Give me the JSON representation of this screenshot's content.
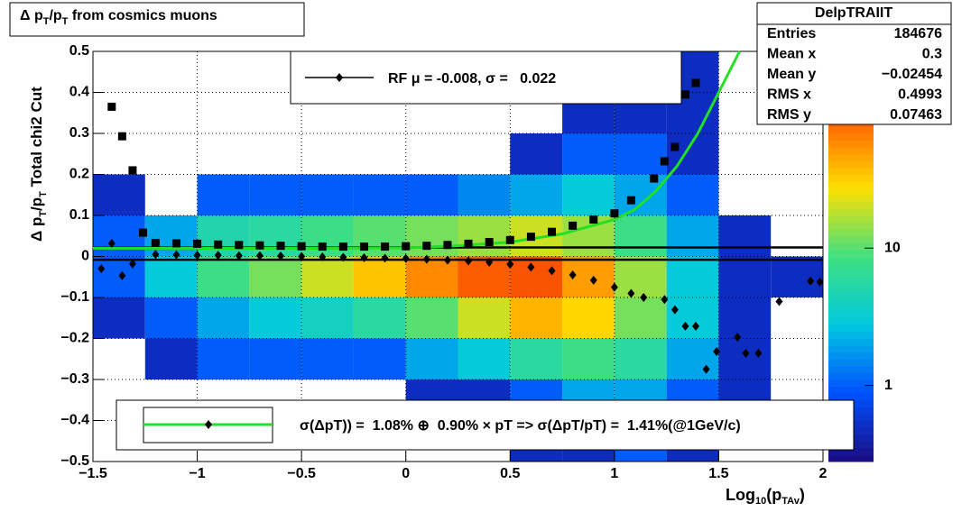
{
  "chart_data": {
    "type": "heatmap",
    "title_parts": [
      "Δ p",
      "T",
      "/p",
      "T",
      " from cosmics muons"
    ],
    "ylabel_parts": [
      "Δ p",
      "T",
      "/p",
      "T",
      "  Total chi2 Cut"
    ],
    "xlabel_parts": [
      "Log",
      "10",
      "(p",
      "TAv",
      ")"
    ],
    "xlim": [
      -1.5,
      2
    ],
    "ylim": [
      -0.5,
      0.5
    ],
    "xticks": [
      {
        "value": -1.5,
        "label": "−1.5"
      },
      {
        "value": -1,
        "label": "−1"
      },
      {
        "value": -0.5,
        "label": "−0.5"
      },
      0,
      0.5,
      1,
      1.5,
      2
    ],
    "yticks": [
      {
        "value": -0.5,
        "label": "−0.5"
      },
      {
        "value": -0.4,
        "label": "−0.4"
      },
      {
        "value": -0.3,
        "label": "−0.3"
      },
      {
        "value": -0.2,
        "label": "−0.2"
      },
      {
        "value": -0.1,
        "label": "−0.1"
      },
      0,
      0.1,
      0.2,
      0.3,
      0.4,
      0.5
    ],
    "grid": true,
    "zlog": true,
    "zlim": [
      0.28,
      270
    ],
    "zticks": [
      1,
      10
    ],
    "palette": [
      "#1a0a80",
      "#0050ff",
      "#00c8e0",
      "#40e080",
      "#ffe000",
      "#ff6000",
      "#c00000"
    ],
    "xbins": [
      -1.5,
      -1.25,
      -1,
      -0.75,
      -0.5,
      -0.25,
      0,
      0.25,
      0.5,
      0.75,
      1,
      1.25,
      1.5,
      1.75,
      2
    ],
    "ybins": [
      -0.5,
      -0.4,
      -0.3,
      -0.2,
      -0.1,
      0,
      0.1,
      0.2,
      0.3,
      0.4,
      0.5
    ],
    "z": [
      [
        0,
        0,
        0,
        0,
        0,
        0,
        0,
        0,
        0.5,
        0.5,
        1,
        0.5,
        0,
        0
      ],
      [
        0,
        0,
        0,
        0,
        0,
        0,
        0.5,
        0.5,
        1,
        2,
        2,
        1,
        0.5,
        0
      ],
      [
        0,
        0.5,
        1,
        1,
        1,
        1,
        2,
        3,
        6,
        8,
        6,
        2,
        0.5,
        0
      ],
      [
        0.5,
        1,
        2,
        3,
        4,
        6,
        10,
        20,
        40,
        30,
        12,
        3,
        0.5,
        0
      ],
      [
        1,
        3,
        8,
        12,
        20,
        35,
        60,
        90,
        100,
        50,
        15,
        3,
        0.5,
        0.5
      ],
      [
        1,
        2,
        5,
        6,
        8,
        10,
        12,
        15,
        20,
        15,
        8,
        2,
        0.5,
        0
      ],
      [
        0.5,
        0,
        1,
        1,
        1,
        1,
        1,
        1.5,
        2,
        3,
        2,
        1,
        0,
        0
      ],
      [
        0,
        0,
        0,
        0,
        0,
        0,
        0,
        0,
        0.5,
        1,
        1,
        0.5,
        0,
        0
      ],
      [
        0,
        0,
        0,
        0,
        0,
        0,
        0,
        0,
        0,
        0.5,
        0.5,
        0.5,
        0,
        0
      ],
      [
        0,
        0,
        0,
        0,
        0,
        0,
        0,
        0,
        0,
        0,
        0.5,
        0.5,
        0,
        0
      ]
    ],
    "series": [
      {
        "marker": "square",
        "color": "#000000",
        "x": [
          -1.41,
          -1.36,
          -1.31,
          -1.26,
          -1.2,
          -1.1,
          -1.0,
          -0.9,
          -0.8,
          -0.7,
          -0.6,
          -0.5,
          -0.4,
          -0.3,
          -0.2,
          -0.1,
          0,
          0.1,
          0.2,
          0.3,
          0.4,
          0.5,
          0.6,
          0.7,
          0.8,
          0.9,
          1.0,
          1.08,
          1.19,
          1.24,
          1.29,
          1.34,
          1.39
        ],
        "values": [
          0.365,
          0.293,
          0.21,
          0.058,
          0.033,
          0.032,
          0.031,
          0.029,
          0.028,
          0.027,
          0.026,
          0.025,
          0.024,
          0.024,
          0.024,
          0.024,
          0.025,
          0.026,
          0.028,
          0.031,
          0.035,
          0.04,
          0.048,
          0.06,
          0.075,
          0.09,
          0.105,
          0.137,
          0.19,
          0.232,
          0.267,
          0.395,
          0.423
        ]
      },
      {
        "marker": "diamond",
        "color": "#000000",
        "x": [
          -1.46,
          -1.41,
          -1.36,
          -1.31,
          -1.2,
          -1.1,
          -1.0,
          -0.9,
          -0.8,
          -0.7,
          -0.6,
          -0.5,
          -0.4,
          -0.3,
          -0.2,
          -0.1,
          0,
          0.1,
          0.2,
          0.3,
          0.4,
          0.5,
          0.6,
          0.7,
          0.8,
          0.9,
          1.0,
          1.08,
          1.14,
          1.24,
          1.29,
          1.34,
          1.39,
          1.44,
          1.49,
          1.59,
          1.63,
          1.69,
          1.79,
          1.94,
          1.985
        ],
        "values": [
          -0.03,
          0.032,
          -0.047,
          -0.018,
          0.005,
          0.004,
          0.003,
          0.003,
          0.002,
          0.002,
          0.001,
          0,
          -0.001,
          -0.002,
          -0.003,
          -0.004,
          -0.005,
          -0.007,
          -0.009,
          -0.011,
          -0.014,
          -0.019,
          -0.026,
          -0.035,
          -0.045,
          -0.058,
          -0.075,
          -0.09,
          -0.1,
          -0.105,
          -0.13,
          -0.17,
          -0.17,
          -0.275,
          -0.232,
          -0.197,
          -0.236,
          -0.236,
          -0.11,
          -0.06,
          -0.062
        ]
      }
    ],
    "fit": {
      "color": "#22e022",
      "x": [
        -1.5,
        -1,
        -0.5,
        0,
        0.25,
        0.5,
        0.75,
        1,
        1.1,
        1.2,
        1.3,
        1.4,
        1.5,
        1.6
      ],
      "values": [
        0.02,
        0.02,
        0.02,
        0.021,
        0.026,
        0.035,
        0.055,
        0.09,
        0.115,
        0.16,
        0.22,
        0.3,
        0.4,
        0.5
      ]
    },
    "hlines": [
      0.022,
      -0.008
    ],
    "legend_top": "RF μ = -0.008, σ =   0.022",
    "legend_bottom": "σ(ΔpT)) =  1.08% ⊕  0.90% × pT => σ(ΔpT/pT) =  1.41%(@1GeV/c)",
    "stats": {
      "title": "DelpTRAIIT",
      "rows": [
        [
          "Entries",
          "184676"
        ],
        [
          "Mean x",
          "0.3"
        ],
        [
          "Mean y",
          "−0.02454"
        ],
        [
          "RMS x",
          "0.4993"
        ],
        [
          "RMS y",
          "0.07463"
        ]
      ]
    }
  }
}
